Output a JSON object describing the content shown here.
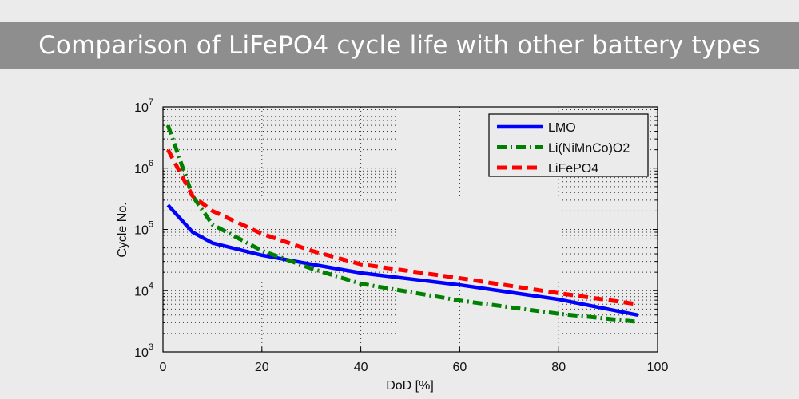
{
  "title": "Comparison of LiFePO4 cycle life with other battery types",
  "chart_data": {
    "type": "line",
    "xlabel": "DoD [%]",
    "ylabel": "Cycle No.",
    "xlim": [
      0,
      100
    ],
    "ylim": [
      1000,
      10000000
    ],
    "yscale": "log",
    "grid": true,
    "legend_position": "top-right",
    "xticks": [
      "0",
      "20",
      "40",
      "60",
      "80",
      "100"
    ],
    "yticks": [
      {
        "base": "10",
        "exp": "3"
      },
      {
        "base": "10",
        "exp": "4"
      },
      {
        "base": "10",
        "exp": "5"
      },
      {
        "base": "10",
        "exp": "6"
      },
      {
        "base": "10",
        "exp": "7"
      }
    ],
    "series": [
      {
        "name": "LMO",
        "color": "#0000ff",
        "style": "solid",
        "x": [
          1,
          6,
          10,
          20,
          30,
          40,
          60,
          80,
          96
        ],
        "y": [
          250000,
          90000,
          60000,
          38000,
          27000,
          19500,
          12400,
          7200,
          4000
        ]
      },
      {
        "name": "Li(NiMnCo)O2",
        "color": "#008000",
        "style": "dashdot",
        "x": [
          1,
          6,
          10,
          20,
          30,
          40,
          60,
          80,
          96
        ],
        "y": [
          5000000,
          350000,
          120000,
          45000,
          23000,
          13000,
          6900,
          4200,
          3100
        ]
      },
      {
        "name": "LiFePO4",
        "color": "#ff0000",
        "style": "dashed",
        "x": [
          1,
          6,
          10,
          20,
          30,
          40,
          60,
          80,
          96
        ],
        "y": [
          2000000,
          350000,
          200000,
          85000,
          45000,
          27000,
          16000,
          9100,
          6000
        ]
      }
    ]
  }
}
